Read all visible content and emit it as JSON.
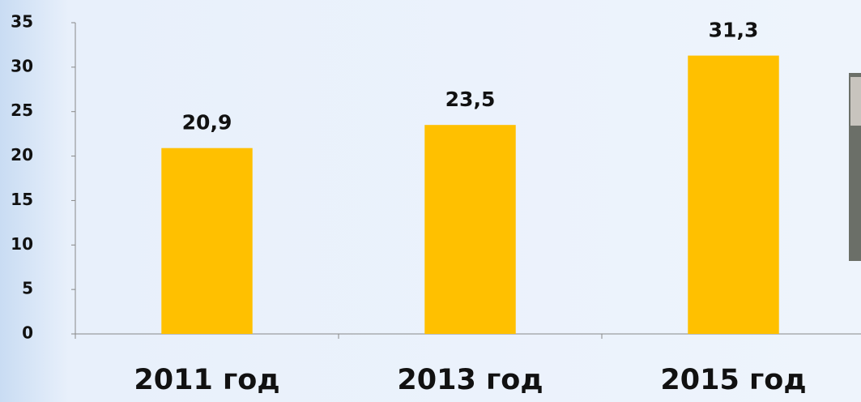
{
  "chart_data": {
    "type": "bar",
    "categories": [
      "2011 год",
      "2013 год",
      "2015 год"
    ],
    "values": [
      20.9,
      23.5,
      31.3
    ],
    "value_labels": [
      "20,9",
      "23,5",
      "31,3"
    ],
    "color": "#ffc000",
    "ylim": [
      0,
      35
    ],
    "yticks": [
      0,
      5,
      10,
      15,
      20,
      25,
      30,
      35
    ],
    "grid": false
  }
}
